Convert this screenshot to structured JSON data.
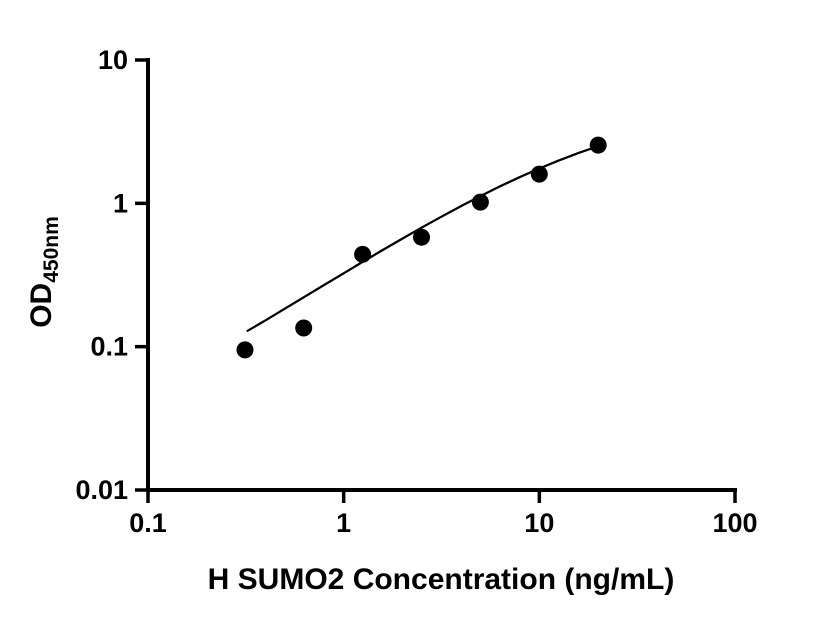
{
  "figure": {
    "background": "#ffffff",
    "axis_color": "#000000"
  },
  "chart_data": {
    "type": "scatter",
    "title": "",
    "xlabel": "H SUMO2 Concentration (ng/mL)",
    "ylabel": "OD450nm",
    "ylabel_main": "OD",
    "ylabel_sub": "450nm",
    "xscale": "log",
    "yscale": "log",
    "xlim": [
      0.1,
      100
    ],
    "ylim": [
      0.01,
      10
    ],
    "grid": false,
    "x_tick_values": [
      0.1,
      1,
      10,
      100
    ],
    "x_tick_labels": [
      "0.1",
      "1",
      "10",
      "100"
    ],
    "y_tick_values": [
      0.01,
      0.1,
      1,
      10
    ],
    "y_tick_labels": [
      "0.01",
      "0.1",
      "1",
      "10"
    ],
    "marker_color": "#000000",
    "line_color": "#000000",
    "series": [
      {
        "name": "H SUMO2 standard points",
        "kind": "scatter",
        "marker": "filled-circle",
        "color": "#000000",
        "x": [
          0.313,
          0.625,
          1.25,
          2.5,
          5,
          10,
          20
        ],
        "y": [
          0.095,
          0.135,
          0.44,
          0.58,
          1.02,
          1.6,
          2.55
        ]
      },
      {
        "name": "fit curve",
        "kind": "line",
        "color": "#000000",
        "width": 2.25,
        "x": [
          0.32,
          0.4,
          0.5,
          0.625,
          0.8,
          1.0,
          1.25,
          1.6,
          2.0,
          2.5,
          3.15,
          4.0,
          5.0,
          6.3,
          8.0,
          10.0,
          12.5,
          16.0,
          20.0
        ],
        "y": [
          0.128,
          0.153,
          0.184,
          0.221,
          0.271,
          0.325,
          0.39,
          0.476,
          0.568,
          0.676,
          0.805,
          0.96,
          1.123,
          1.314,
          1.531,
          1.751,
          1.985,
          2.255,
          2.505
        ]
      }
    ]
  }
}
